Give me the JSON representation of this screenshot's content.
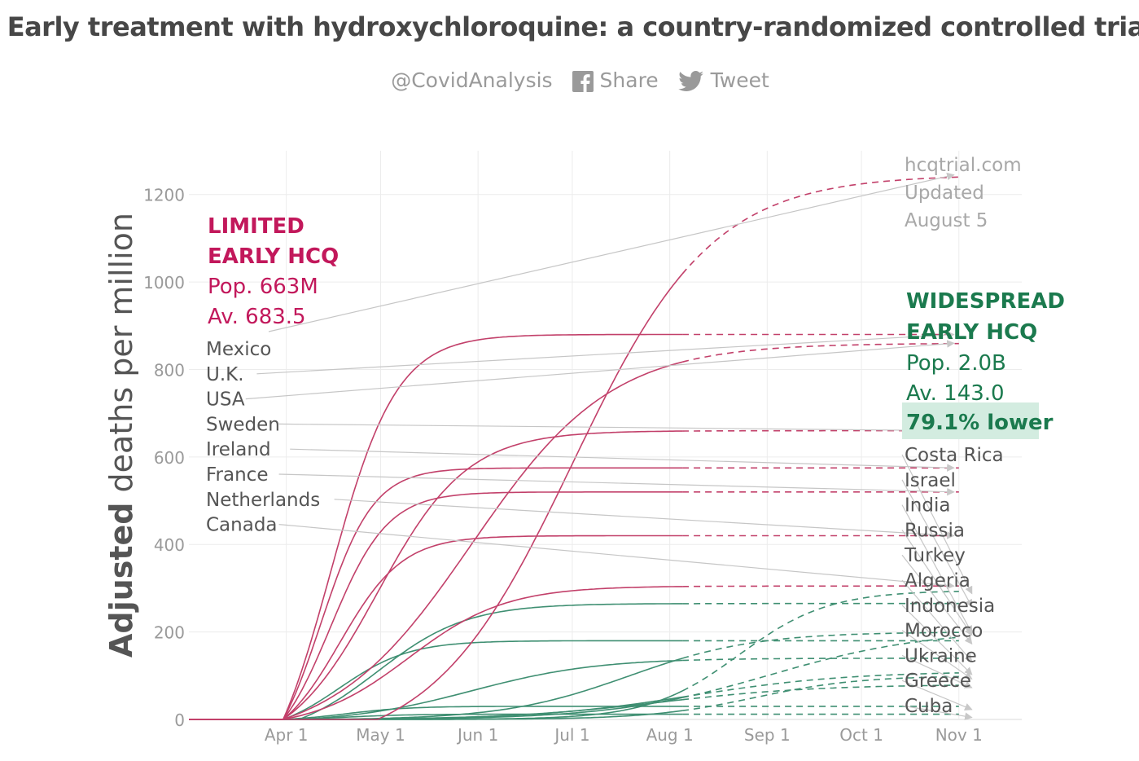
{
  "page": {
    "title": "Early treatment with hydroxychloroquine: a country-randomized controlled trial",
    "handle": "@CovidAnalysis",
    "share_label": "Share",
    "tweet_label": "Tweet"
  },
  "colors": {
    "limited": "#c2185b",
    "limited_line": "#c2406a",
    "widespread": "#1b7a4e",
    "widespread_line": "#3f8f72",
    "highlight_bg": "#d3ece0",
    "axis_text": "#9a9a9a",
    "label_text": "#555555",
    "grid": "#ececec",
    "connector": "#c6c6c6"
  },
  "chart_data": {
    "type": "line",
    "title": "Early treatment with hydroxychloroquine: a country-randomized controlled trial",
    "ylabel_bold": "Adjusted",
    "ylabel_rest": " deaths per million",
    "xlabel": "",
    "ylim": [
      0,
      1300
    ],
    "yticks": [
      0,
      200,
      400,
      600,
      800,
      1000,
      1200
    ],
    "x_tick_labels": [
      "Apr 1",
      "May 1",
      "Jun 1",
      "Jul 1",
      "Aug 1",
      "Sep 1",
      "Oct 1",
      "Nov 1"
    ],
    "x_tick_days": [
      31,
      61,
      92,
      122,
      153,
      184,
      214,
      245
    ],
    "x_days_range": [
      0,
      265
    ],
    "observed_end_day": 157,
    "projection_end_day": 245,
    "grid": true,
    "watermark_lines": [
      "hcqtrial.com",
      "Updated",
      "August 5"
    ],
    "limited_group": {
      "label_lines": [
        "LIMITED",
        "EARLY HCQ"
      ],
      "population": "Pop. 663M",
      "average": "Av. 683.5",
      "series": [
        {
          "name": "Mexico",
          "start": 60,
          "k": 0.045,
          "mid": 122,
          "final": 1245
        },
        {
          "name": "U.K.",
          "start": 30,
          "k": 0.095,
          "mid": 45,
          "final": 880
        },
        {
          "name": "USA",
          "start": 30,
          "k": 0.045,
          "mid": 90,
          "final": 860
        },
        {
          "name": "Sweden",
          "start": 30,
          "k": 0.07,
          "mid": 60,
          "final": 660
        },
        {
          "name": "Ireland",
          "start": 30,
          "k": 0.12,
          "mid": 42,
          "final": 575
        },
        {
          "name": "France",
          "start": 30,
          "k": 0.11,
          "mid": 45,
          "final": 520
        },
        {
          "name": "Netherlands",
          "start": 30,
          "k": 0.1,
          "mid": 48,
          "final": 420
        },
        {
          "name": "Canada",
          "start": 30,
          "k": 0.065,
          "mid": 70,
          "final": 305
        }
      ]
    },
    "widespread_group": {
      "label_lines": [
        "WIDESPREAD",
        "EARLY HCQ"
      ],
      "population": "Pop. 2.0B",
      "average": "Av. 143.0",
      "reduction": "79.1% lower",
      "series": [
        {
          "name": "Costa Rica",
          "start": 45,
          "k": 0.07,
          "mid": 175,
          "final": 295
        },
        {
          "name": "Israel",
          "start": 35,
          "k": 0.07,
          "mid": 60,
          "final": 265
        },
        {
          "name": "India",
          "start": 45,
          "k": 0.04,
          "mid": 185,
          "final": 205
        },
        {
          "name": "Russia",
          "start": 40,
          "k": 0.05,
          "mid": 140,
          "final": 200
        },
        {
          "name": "Turkey",
          "start": 30,
          "k": 0.09,
          "mid": 48,
          "final": 180
        },
        {
          "name": "Algeria",
          "start": 35,
          "k": 0.05,
          "mid": 90,
          "final": 140
        },
        {
          "name": "Indonesia",
          "start": 40,
          "k": 0.04,
          "mid": 160,
          "final": 110
        },
        {
          "name": "Morocco",
          "start": 50,
          "k": 0.06,
          "mid": 180,
          "final": 100
        },
        {
          "name": "Ukraine",
          "start": 40,
          "k": 0.04,
          "mid": 150,
          "final": 80
        },
        {
          "name": "Greece",
          "start": 30,
          "k": 0.1,
          "mid": 50,
          "final": 30
        },
        {
          "name": "Cuba",
          "start": 30,
          "k": 0.1,
          "mid": 50,
          "final": 12
        }
      ]
    }
  }
}
